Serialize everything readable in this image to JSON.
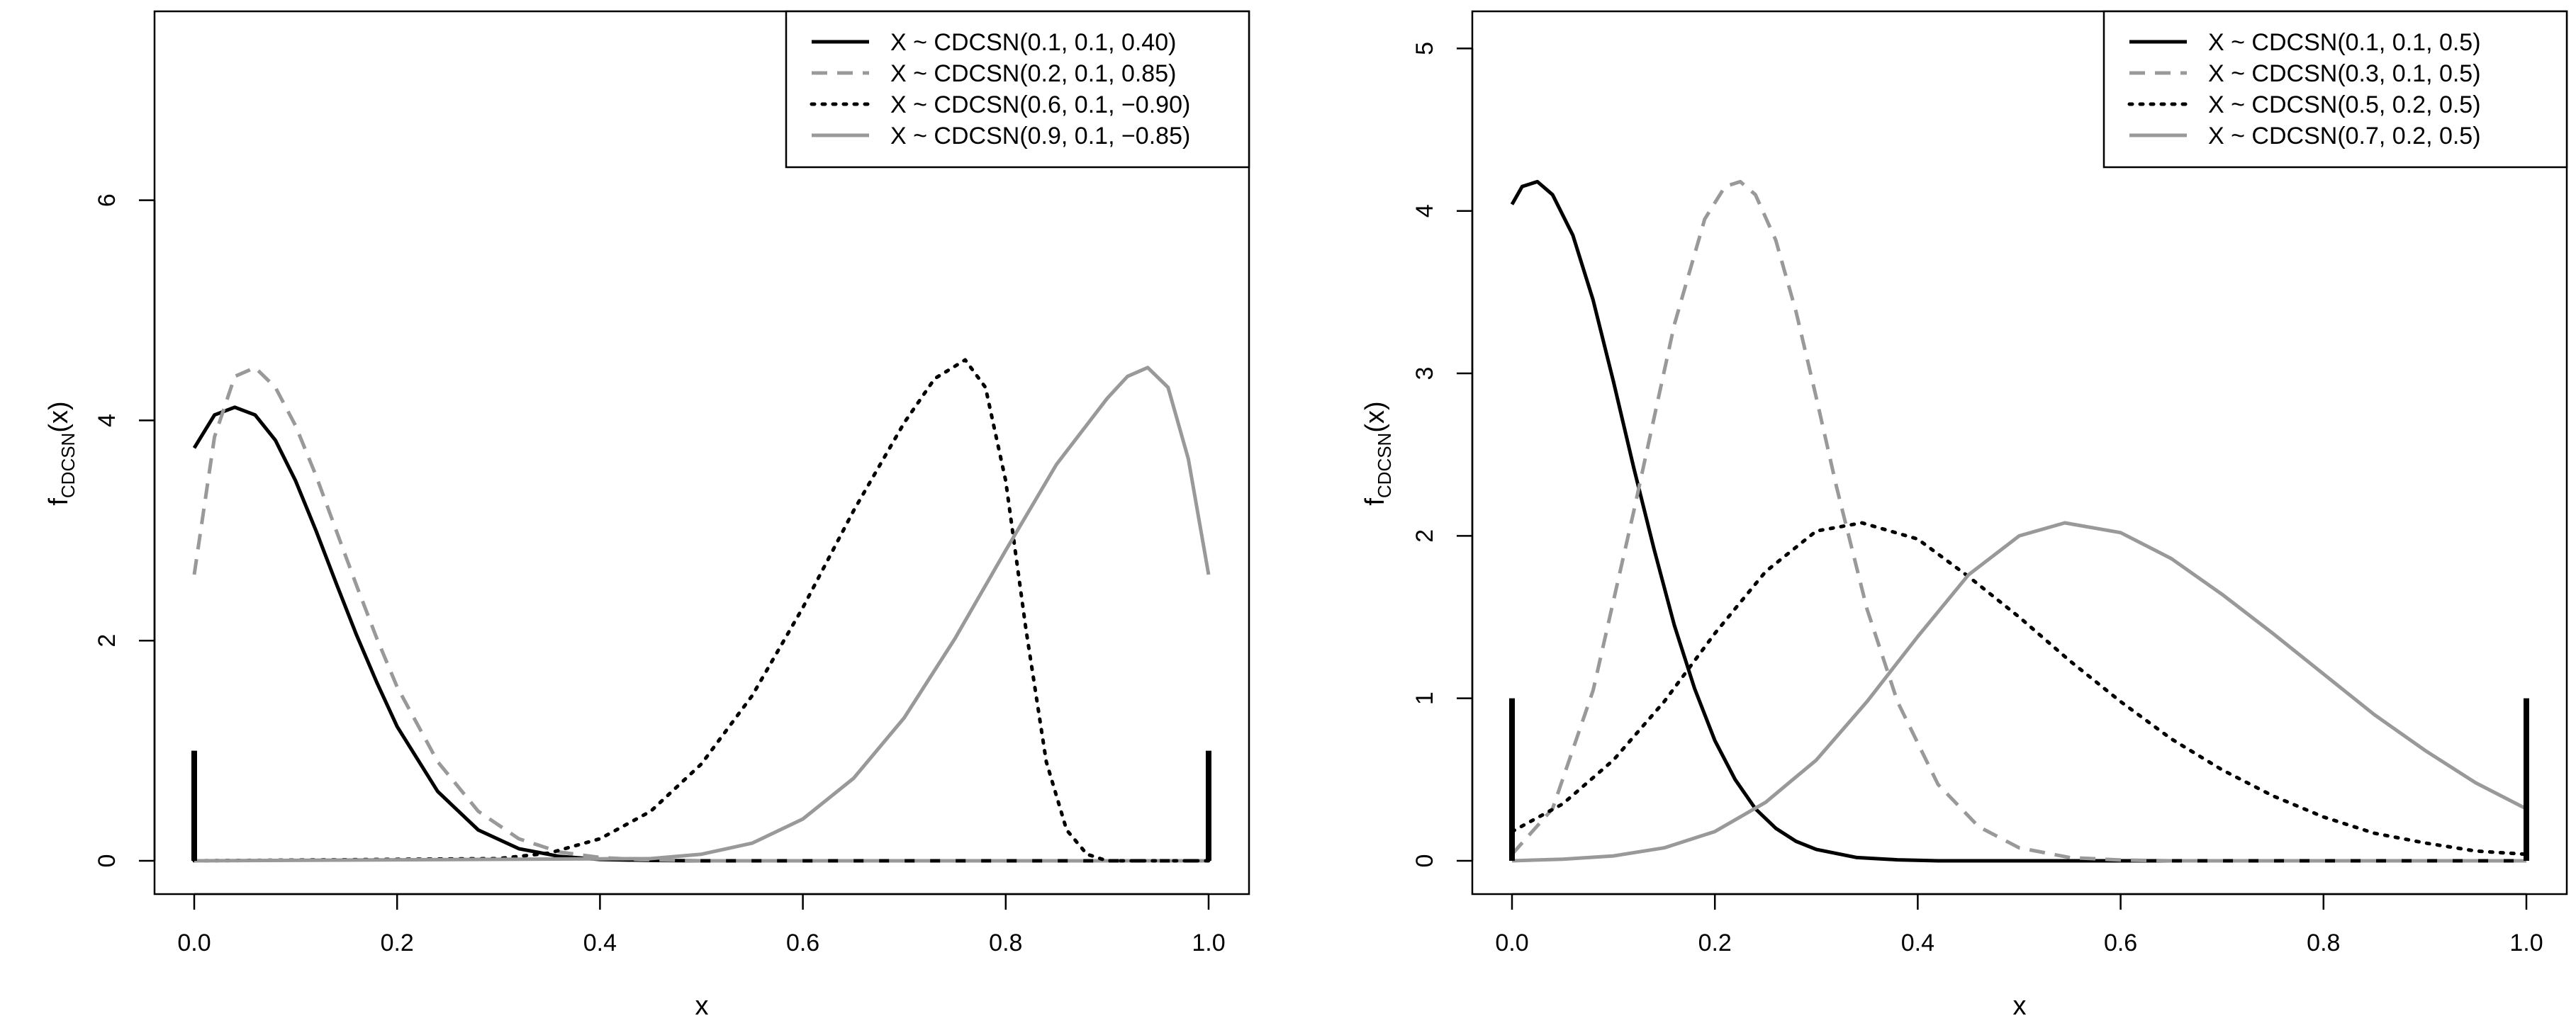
{
  "chart_data": [
    {
      "type": "line",
      "xlabel": "x",
      "ylabel_main": "f",
      "ylabel_sub": "CDCSN",
      "ylabel_tail": "(x)",
      "xlim": [
        0,
        1
      ],
      "ylim": [
        0,
        7.6
      ],
      "xticks": [
        0,
        0.2,
        0.4,
        0.6,
        0.8,
        1
      ],
      "xtick_labels": [
        "0.0",
        "0.2",
        "0.4",
        "0.6",
        "0.8",
        "1.0"
      ],
      "yticks": [
        0,
        2,
        4,
        6
      ],
      "ytick_labels": [
        "0",
        "2",
        "4",
        "6"
      ],
      "legend_position": "top-right",
      "point_masses": [
        {
          "x": 0,
          "height": 1
        },
        {
          "x": 1,
          "height": 1
        }
      ],
      "series": [
        {
          "name": "X ~ CDCSN(0.1, 0.1, 0.40)",
          "color": "#000000",
          "dash": "solid",
          "x": [
            0,
            0.02,
            0.04,
            0.06,
            0.08,
            0.1,
            0.12,
            0.14,
            0.16,
            0.18,
            0.2,
            0.24,
            0.28,
            0.32,
            0.36,
            0.4,
            0.45,
            0.5,
            0.6,
            0.8,
            1.0
          ],
          "y": [
            3.75,
            4.05,
            4.12,
            4.05,
            3.82,
            3.45,
            3.0,
            2.52,
            2.05,
            1.62,
            1.22,
            0.63,
            0.28,
            0.11,
            0.04,
            0.012,
            0.003,
            0.0,
            0.0,
            0.0,
            0.0
          ]
        },
        {
          "name": "X ~ CDCSN(0.2, 0.1, 0.85)",
          "color": "#999999",
          "dash": "dashed",
          "x": [
            0,
            0.02,
            0.04,
            0.06,
            0.08,
            0.1,
            0.12,
            0.14,
            0.16,
            0.18,
            0.2,
            0.24,
            0.28,
            0.32,
            0.36,
            0.4,
            0.44,
            0.5,
            0.55,
            0.6,
            0.8,
            1.0
          ],
          "y": [
            2.6,
            3.85,
            4.4,
            4.48,
            4.3,
            3.95,
            3.5,
            3.0,
            2.5,
            2.02,
            1.58,
            0.9,
            0.45,
            0.2,
            0.08,
            0.03,
            0.01,
            0.0,
            0.0,
            0.0,
            0.0,
            0.0
          ]
        },
        {
          "name": "X ~ CDCSN(0.6, 0.1, −0.90)",
          "color": "#000000",
          "dash": "dotted",
          "x": [
            0,
            0.3,
            0.35,
            0.4,
            0.45,
            0.5,
            0.55,
            0.6,
            0.65,
            0.7,
            0.73,
            0.76,
            0.78,
            0.8,
            0.82,
            0.84,
            0.86,
            0.88,
            0.9,
            1.0
          ],
          "y": [
            0.0,
            0.02,
            0.07,
            0.2,
            0.45,
            0.88,
            1.5,
            2.3,
            3.18,
            3.98,
            4.38,
            4.55,
            4.3,
            3.45,
            2.1,
            0.9,
            0.28,
            0.06,
            0.0,
            0.0
          ]
        },
        {
          "name": "X ~ CDCSN(0.9, 0.1, −0.85)",
          "color": "#999999",
          "dash": "solid",
          "x": [
            0,
            0.45,
            0.5,
            0.55,
            0.6,
            0.65,
            0.7,
            0.75,
            0.8,
            0.85,
            0.9,
            0.92,
            0.94,
            0.96,
            0.98,
            1.0
          ],
          "y": [
            0.0,
            0.02,
            0.06,
            0.16,
            0.38,
            0.75,
            1.3,
            2.02,
            2.82,
            3.6,
            4.2,
            4.4,
            4.48,
            4.3,
            3.65,
            2.6
          ]
        }
      ]
    },
    {
      "type": "line",
      "xlabel": "x",
      "ylabel_main": "f",
      "ylabel_sub": "CDCSN",
      "ylabel_tail": "(x)",
      "xlim": [
        0,
        1
      ],
      "ylim": [
        0,
        5.15
      ],
      "xticks": [
        0,
        0.2,
        0.4,
        0.6,
        0.8,
        1
      ],
      "xtick_labels": [
        "0.0",
        "0.2",
        "0.4",
        "0.6",
        "0.8",
        "1.0"
      ],
      "yticks": [
        0,
        1,
        2,
        3,
        4,
        5
      ],
      "ytick_labels": [
        "0",
        "1",
        "2",
        "3",
        "4",
        "5"
      ],
      "legend_position": "top-right",
      "point_masses": [
        {
          "x": 0,
          "height": 1
        },
        {
          "x": 1,
          "height": 1
        }
      ],
      "series": [
        {
          "name": "X ~ CDCSN(0.1, 0.1, 0.5)",
          "color": "#000000",
          "dash": "solid",
          "x": [
            0,
            0.01,
            0.025,
            0.04,
            0.06,
            0.08,
            0.1,
            0.12,
            0.14,
            0.16,
            0.18,
            0.2,
            0.22,
            0.24,
            0.26,
            0.28,
            0.3,
            0.34,
            0.38,
            0.42,
            0.5,
            0.6,
            0.8,
            1.0
          ],
          "y": [
            4.04,
            4.15,
            4.18,
            4.1,
            3.85,
            3.45,
            2.95,
            2.42,
            1.92,
            1.45,
            1.06,
            0.74,
            0.5,
            0.32,
            0.2,
            0.12,
            0.07,
            0.02,
            0.006,
            0.0,
            0.0,
            0.0,
            0.0,
            0.0
          ]
        },
        {
          "name": "X ~ CDCSN(0.3, 0.1, 0.5)",
          "color": "#999999",
          "dash": "dashed",
          "x": [
            0,
            0.04,
            0.08,
            0.12,
            0.16,
            0.19,
            0.21,
            0.225,
            0.24,
            0.26,
            0.28,
            0.3,
            0.32,
            0.35,
            0.38,
            0.42,
            0.46,
            0.5,
            0.55,
            0.6,
            0.65,
            0.7,
            0.8,
            1.0
          ],
          "y": [
            0.04,
            0.32,
            1.05,
            2.15,
            3.3,
            3.95,
            4.15,
            4.18,
            4.1,
            3.82,
            3.38,
            2.85,
            2.3,
            1.55,
            0.98,
            0.47,
            0.21,
            0.08,
            0.02,
            0.005,
            0.0,
            0.0,
            0.0,
            0.0
          ]
        },
        {
          "name": "X ~ CDCSN(0.5, 0.2, 0.5)",
          "color": "#000000",
          "dash": "dotted",
          "x": [
            0,
            0.05,
            0.1,
            0.15,
            0.2,
            0.25,
            0.3,
            0.345,
            0.4,
            0.45,
            0.5,
            0.55,
            0.6,
            0.65,
            0.7,
            0.75,
            0.8,
            0.85,
            0.9,
            0.95,
            1.0
          ],
          "y": [
            0.18,
            0.35,
            0.62,
            0.98,
            1.4,
            1.78,
            2.03,
            2.08,
            1.98,
            1.75,
            1.5,
            1.23,
            0.98,
            0.75,
            0.56,
            0.4,
            0.27,
            0.17,
            0.11,
            0.06,
            0.04
          ]
        },
        {
          "name": "X ~ CDCSN(0.7, 0.2, 0.5)",
          "color": "#999999",
          "dash": "solid",
          "x": [
            0,
            0.05,
            0.1,
            0.15,
            0.2,
            0.25,
            0.3,
            0.35,
            0.4,
            0.45,
            0.5,
            0.545,
            0.6,
            0.65,
            0.7,
            0.75,
            0.8,
            0.85,
            0.9,
            0.95,
            1.0
          ],
          "y": [
            0.0,
            0.01,
            0.03,
            0.08,
            0.18,
            0.36,
            0.62,
            0.98,
            1.38,
            1.76,
            2.0,
            2.08,
            2.02,
            1.86,
            1.64,
            1.4,
            1.15,
            0.9,
            0.68,
            0.48,
            0.32
          ]
        }
      ]
    }
  ]
}
